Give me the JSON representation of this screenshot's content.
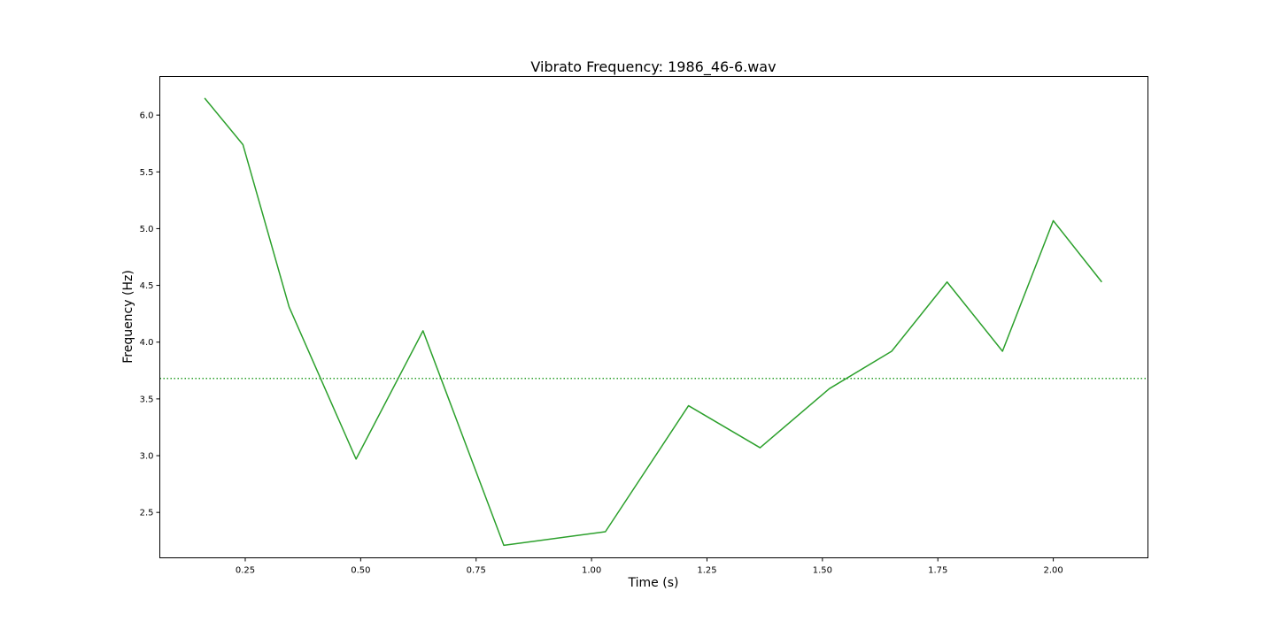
{
  "chart_data": {
    "type": "line",
    "title": "Vibrato Frequency: 1986_46-6.wav",
    "xlabel": "Time (s)",
    "ylabel": "Frequency (Hz)",
    "xlim": [
      0.065,
      2.205
    ],
    "ylim": [
      2.1,
      6.34
    ],
    "x_ticks": [
      0.25,
      0.5,
      0.75,
      1.0,
      1.25,
      1.5,
      1.75,
      2.0
    ],
    "x_tick_labels": [
      "0.25",
      "0.50",
      "0.75",
      "1.00",
      "1.25",
      "1.50",
      "1.75",
      "2.00"
    ],
    "y_ticks": [
      2.5,
      3.0,
      3.5,
      4.0,
      4.5,
      5.0,
      5.5,
      6.0
    ],
    "y_tick_labels": [
      "2.5",
      "3.0",
      "3.5",
      "4.0",
      "4.5",
      "5.0",
      "5.5",
      "6.0"
    ],
    "grid": false,
    "series": [
      {
        "color": "#2ca02c",
        "style": "solid",
        "x": [
          0.162,
          0.245,
          0.345,
          0.49,
          0.635,
          0.81,
          1.03,
          1.21,
          1.365,
          1.515,
          1.65,
          1.77,
          1.89,
          2.0,
          2.105
        ],
        "y": [
          6.15,
          5.74,
          4.31,
          2.97,
          4.1,
          2.21,
          2.33,
          3.44,
          3.07,
          3.59,
          3.92,
          4.53,
          3.92,
          5.07,
          4.53
        ]
      }
    ],
    "reference_line": {
      "y": 3.68,
      "color": "#2ca02c",
      "style": "dotted"
    }
  }
}
